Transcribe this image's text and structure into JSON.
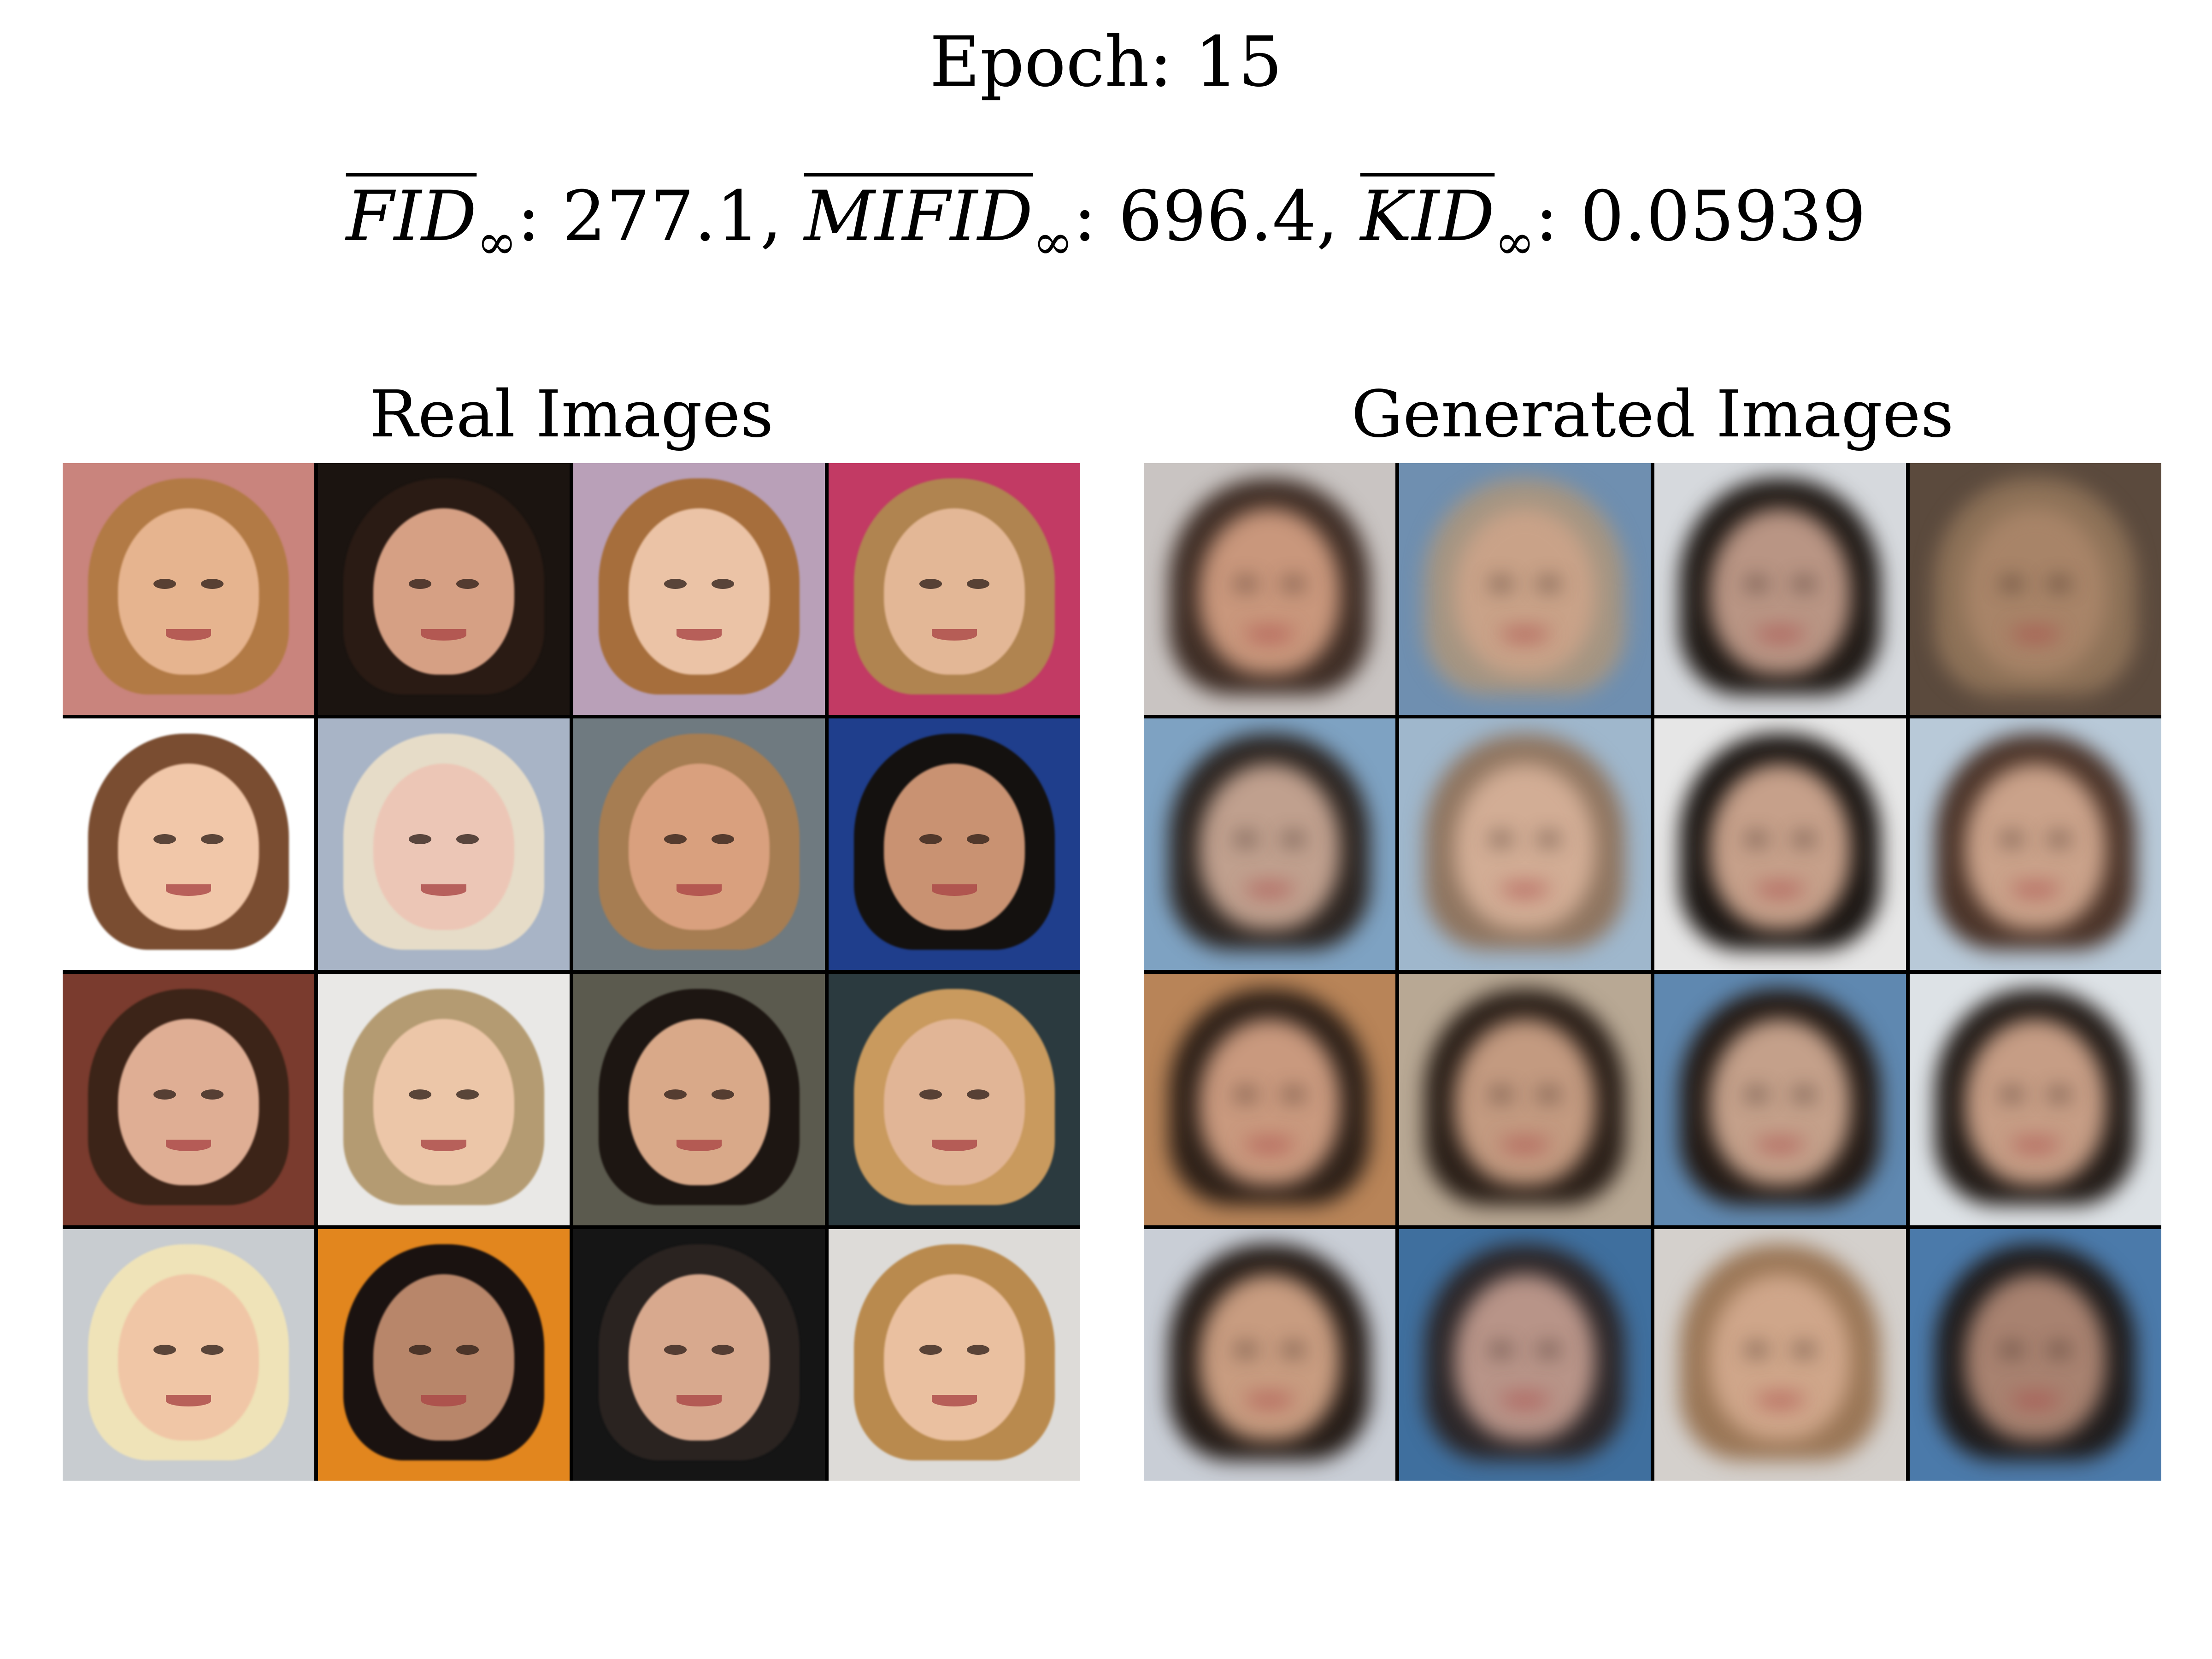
{
  "header": {
    "epoch_label": "Epoch: 15",
    "metrics": [
      {
        "name": "FID",
        "sub": "∞",
        "value": "277.1",
        "sep": ", "
      },
      {
        "name": "MIFID",
        "sub": "∞",
        "value": "696.4",
        "sep": ", "
      },
      {
        "name": "KID",
        "sub": "∞",
        "value": "0.05939",
        "sep": ""
      }
    ]
  },
  "panels": {
    "real": {
      "title": "Real Images",
      "cells": [
        {
          "bg": "#c9847d",
          "hair": "#b27a45",
          "skin": "#e6b48f"
        },
        {
          "bg": "#1b1410",
          "hair": "#2a1b14",
          "skin": "#d6a084"
        },
        {
          "bg": "#b9a0b8",
          "hair": "#a66e3c",
          "skin": "#ebc3a6"
        },
        {
          "bg": "#c23a64",
          "hair": "#b08450",
          "skin": "#e3b796"
        },
        {
          "bg": "#ffffff",
          "hair": "#7a4d31",
          "skin": "#f1c7a9"
        },
        {
          "bg": "#a8b4c6",
          "hair": "#e6dcc8",
          "skin": "#ecc6b6"
        },
        {
          "bg": "#6f7a80",
          "hair": "#a67d52",
          "skin": "#d9a07e"
        },
        {
          "bg": "#1f3e8c",
          "hair": "#14110f",
          "skin": "#c99272"
        },
        {
          "bg": "#7a3b2e",
          "hair": "#3c2418",
          "skin": "#dfae94"
        },
        {
          "bg": "#e9e8e6",
          "hair": "#b49b72",
          "skin": "#ecc6a8"
        },
        {
          "bg": "#5b5a4e",
          "hair": "#1d1612",
          "skin": "#d9a989"
        },
        {
          "bg": "#2b3a3f",
          "hair": "#c99a5e",
          "skin": "#e1b596"
        },
        {
          "bg": "#c8ccd0",
          "hair": "#efe3b8",
          "skin": "#f0c6a6"
        },
        {
          "bg": "#e2861e",
          "hair": "#1a1210",
          "skin": "#b8866a"
        },
        {
          "bg": "#151515",
          "hair": "#2a2320",
          "skin": "#d8a98e"
        },
        {
          "bg": "#dddbd8",
          "hair": "#b98a4e",
          "skin": "#eac0a0"
        }
      ]
    },
    "generated": {
      "title": "Generated Images",
      "cells": [
        {
          "bg": "#c9c4c2",
          "hair": "#3d2c24",
          "skin": "#c9977c"
        },
        {
          "bg": "#6f8fb0",
          "hair": "#a59582",
          "skin": "#c9a288"
        },
        {
          "bg": "#d6d9dd",
          "hair": "#1f1915",
          "skin": "#b99584"
        },
        {
          "bg": "#5b4a3d",
          "hair": "#8e7258",
          "skin": "#a88468"
        },
        {
          "bg": "#7ea2c2",
          "hair": "#2b2420",
          "skin": "#c0a08e"
        },
        {
          "bg": "#9fb7cc",
          "hair": "#8f7560",
          "skin": "#d2ad95"
        },
        {
          "bg": "#e6e6e6",
          "hair": "#1a1512",
          "skin": "#c6a08a"
        },
        {
          "bg": "#b8c9d8",
          "hair": "#4a3328",
          "skin": "#caa28a"
        },
        {
          "bg": "#b88458",
          "hair": "#2d2018",
          "skin": "#c9997e"
        },
        {
          "bg": "#b8a894",
          "hair": "#2a1f18",
          "skin": "#c39a80"
        },
        {
          "bg": "#5f88b0",
          "hair": "#231a15",
          "skin": "#c4a08a"
        },
        {
          "bg": "#dde2e6",
          "hair": "#221b17",
          "skin": "#c69d85"
        },
        {
          "bg": "#c9ced6",
          "hair": "#241b16",
          "skin": "#c89c80"
        },
        {
          "bg": "#3f6f9e",
          "hair": "#2b2628",
          "skin": "#b89488"
        },
        {
          "bg": "#d4d0cc",
          "hair": "#9a7656",
          "skin": "#cfa68a"
        },
        {
          "bg": "#4b7aaa",
          "hair": "#1f1c1c",
          "skin": "#a88270"
        }
      ]
    }
  }
}
